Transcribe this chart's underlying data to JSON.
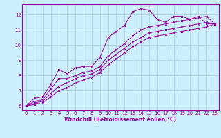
{
  "bg_color": "#cceeff",
  "grid_color": "#aaccdd",
  "line_color": "#990099",
  "xlabel": "Windchill (Refroidissement éolien,°C)",
  "xlim": [
    -0.5,
    23.5
  ],
  "ylim": [
    5.7,
    12.7
  ],
  "xticks": [
    0,
    1,
    2,
    3,
    4,
    5,
    6,
    7,
    8,
    9,
    10,
    11,
    12,
    13,
    14,
    15,
    16,
    17,
    18,
    19,
    20,
    21,
    22,
    23
  ],
  "yticks": [
    6,
    7,
    8,
    9,
    10,
    11,
    12
  ],
  "series": [
    [
      6.0,
      6.5,
      6.6,
      7.4,
      8.4,
      8.1,
      8.5,
      8.6,
      8.6,
      9.2,
      10.5,
      10.9,
      11.3,
      12.2,
      12.4,
      12.3,
      11.7,
      11.5,
      11.9,
      11.9,
      11.7,
      11.9,
      11.4,
      11.4
    ],
    [
      6.0,
      6.3,
      6.4,
      7.1,
      7.8,
      7.8,
      8.0,
      8.2,
      8.3,
      8.6,
      9.3,
      9.7,
      10.1,
      10.6,
      11.0,
      11.2,
      11.3,
      11.4,
      11.5,
      11.6,
      11.7,
      11.8,
      11.9,
      11.4
    ],
    [
      6.0,
      6.2,
      6.3,
      6.8,
      7.3,
      7.5,
      7.8,
      8.0,
      8.1,
      8.4,
      9.0,
      9.4,
      9.8,
      10.2,
      10.5,
      10.8,
      10.9,
      11.0,
      11.1,
      11.2,
      11.3,
      11.4,
      11.5,
      11.4
    ],
    [
      6.0,
      6.1,
      6.2,
      6.6,
      7.0,
      7.2,
      7.5,
      7.7,
      7.9,
      8.2,
      8.7,
      9.1,
      9.5,
      9.9,
      10.2,
      10.5,
      10.6,
      10.7,
      10.8,
      10.9,
      11.0,
      11.1,
      11.2,
      11.4
    ]
  ],
  "tick_fontsize": 5.0,
  "label_fontsize": 5.5,
  "linewidth": 0.7,
  "markersize": 2.0,
  "markeredgewidth": 0.7
}
